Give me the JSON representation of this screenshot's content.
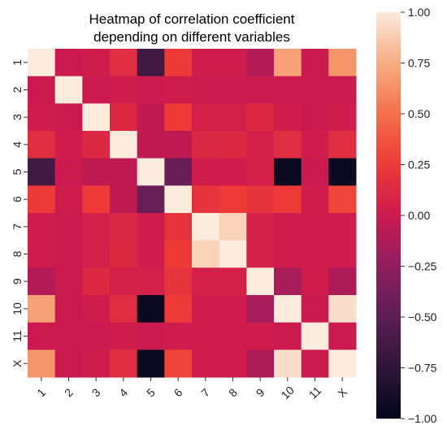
{
  "chart_data": {
    "type": "heatmap",
    "title_lines": [
      "Heatmap of correlation coefficient",
      "depending on different variables"
    ],
    "row_labels": [
      "1",
      "2",
      "3",
      "4",
      "5",
      "6",
      "7",
      "8",
      "9",
      "10",
      "11",
      "X"
    ],
    "col_labels": [
      "1",
      "2",
      "3",
      "4",
      "5",
      "6",
      "7",
      "8",
      "9",
      "10",
      "11",
      "X"
    ],
    "values": [
      [
        1.0,
        0.0,
        0.02,
        0.15,
        -0.65,
        0.25,
        0.02,
        0.02,
        -0.1,
        0.7,
        0.0,
        0.65
      ],
      [
        0.0,
        1.0,
        0.0,
        0.02,
        0.0,
        0.02,
        0.0,
        0.0,
        0.0,
        0.0,
        0.0,
        0.0
      ],
      [
        0.02,
        0.0,
        1.0,
        0.12,
        -0.05,
        0.25,
        0.05,
        0.05,
        0.12,
        0.02,
        0.0,
        0.02
      ],
      [
        0.15,
        0.02,
        0.12,
        1.0,
        -0.05,
        -0.05,
        0.1,
        0.12,
        0.05,
        0.15,
        0.02,
        0.15
      ],
      [
        -0.65,
        0.0,
        -0.05,
        -0.05,
        1.0,
        -0.45,
        0.02,
        0.02,
        0.05,
        -0.95,
        0.0,
        -0.95
      ],
      [
        0.25,
        0.02,
        0.25,
        -0.05,
        -0.45,
        1.0,
        0.2,
        0.25,
        0.2,
        0.25,
        0.02,
        0.3
      ],
      [
        0.02,
        0.0,
        0.05,
        0.1,
        0.02,
        0.2,
        1.0,
        0.9,
        0.05,
        0.02,
        0.02,
        0.02
      ],
      [
        0.02,
        0.0,
        0.05,
        0.12,
        0.02,
        0.25,
        0.9,
        1.0,
        0.05,
        0.02,
        0.02,
        0.02
      ],
      [
        -0.1,
        0.0,
        0.12,
        0.05,
        0.05,
        0.2,
        0.05,
        0.05,
        1.0,
        -0.15,
        0.02,
        -0.12
      ],
      [
        0.7,
        0.0,
        0.02,
        0.15,
        -0.95,
        0.25,
        0.02,
        0.02,
        -0.15,
        1.0,
        0.0,
        0.95
      ],
      [
        0.0,
        0.0,
        0.0,
        0.02,
        0.0,
        0.02,
        0.02,
        0.02,
        0.02,
        0.0,
        1.0,
        0.0
      ],
      [
        0.65,
        0.0,
        0.02,
        0.15,
        -0.95,
        0.3,
        0.02,
        0.02,
        -0.12,
        0.95,
        0.0,
        1.0
      ]
    ],
    "vmin": -1.0,
    "vmax": 1.0,
    "colorbar_ticks": [
      "1.00",
      "0.75",
      "0.50",
      "0.25",
      "0.00",
      "−0.25",
      "−0.50",
      "−0.75",
      "−1.00"
    ],
    "colorbar_tick_values": [
      1.0,
      0.75,
      0.5,
      0.25,
      0.0,
      -0.25,
      -0.5,
      -0.75,
      -1.0
    ],
    "colormap": "rocket",
    "grid": false
  }
}
